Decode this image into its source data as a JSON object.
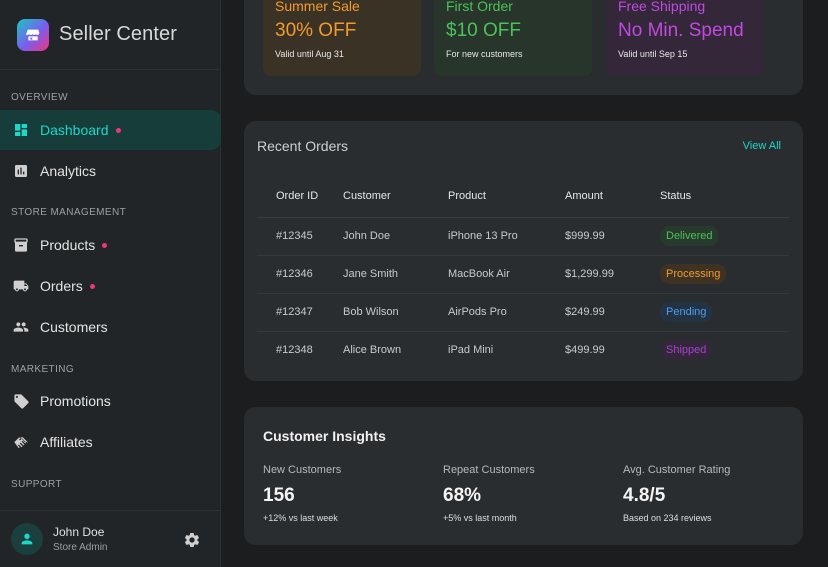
{
  "brand": {
    "title": "Seller Center",
    "logo_icon": "storefront-icon"
  },
  "sidebar": {
    "sections": {
      "overview": "OVERVIEW",
      "store": "STORE MANAGEMENT",
      "marketing": "MARKETING",
      "support": "SUPPORT"
    },
    "items": [
      {
        "label": "Dashboard",
        "icon": "dashboard-icon"
      },
      {
        "label": "Analytics",
        "icon": "bar-chart-icon"
      },
      {
        "label": "Products",
        "icon": "inventory-box-icon"
      },
      {
        "label": "Orders",
        "icon": "truck-icon"
      },
      {
        "label": "Customers",
        "icon": "people-icon"
      },
      {
        "label": "Promotions",
        "icon": "tag-icon"
      },
      {
        "label": "Affiliates",
        "icon": "handshake-icon"
      }
    ]
  },
  "user": {
    "name": "John Doe",
    "role": "Store Admin"
  },
  "promotions": [
    {
      "name": "Summer Sale",
      "value": "30% OFF",
      "note": "Valid until Aug 31",
      "color": "#f39a2c"
    },
    {
      "name": "First Order",
      "value": "$10 OFF",
      "note": "For new customers",
      "color": "#4cc15a"
    },
    {
      "name": "Free Shipping",
      "value": "No Min. Spend",
      "note": "Valid until Sep 15",
      "color": "#c04ae0"
    }
  ],
  "orders": {
    "title": "Recent Orders",
    "view_all": "View All",
    "columns": [
      "Order ID",
      "Customer",
      "Product",
      "Amount",
      "Status"
    ],
    "rows": [
      {
        "id": "#12345",
        "customer": "John Doe",
        "product": "iPhone 13 Pro",
        "amount": "$999.99",
        "status": "Delivered"
      },
      {
        "id": "#12346",
        "customer": "Jane Smith",
        "product": "MacBook Air",
        "amount": "$1,299.99",
        "status": "Processing"
      },
      {
        "id": "#12347",
        "customer": "Bob Wilson",
        "product": "AirPods Pro",
        "amount": "$249.99",
        "status": "Pending"
      },
      {
        "id": "#12348",
        "customer": "Alice Brown",
        "product": "iPad Mini",
        "amount": "$499.99",
        "status": "Shipped"
      }
    ],
    "status_colors": {
      "Delivered": "#4cc15a",
      "Processing": "#f39a2c",
      "Pending": "#4a9ff0",
      "Shipped": "#a83fd0"
    }
  },
  "insights": {
    "title": "Customer Insights",
    "metrics": [
      {
        "label": "New Customers",
        "value": "156",
        "note": "+12% vs last week"
      },
      {
        "label": "Repeat Customers",
        "value": "68%",
        "note": "+5% vs last month"
      },
      {
        "label": "Avg. Customer Rating",
        "value": "4.8/5",
        "note": "Based on 234 reviews"
      }
    ]
  },
  "colors": {
    "accent": "#1dd7c9",
    "notification": "#f0357a"
  }
}
